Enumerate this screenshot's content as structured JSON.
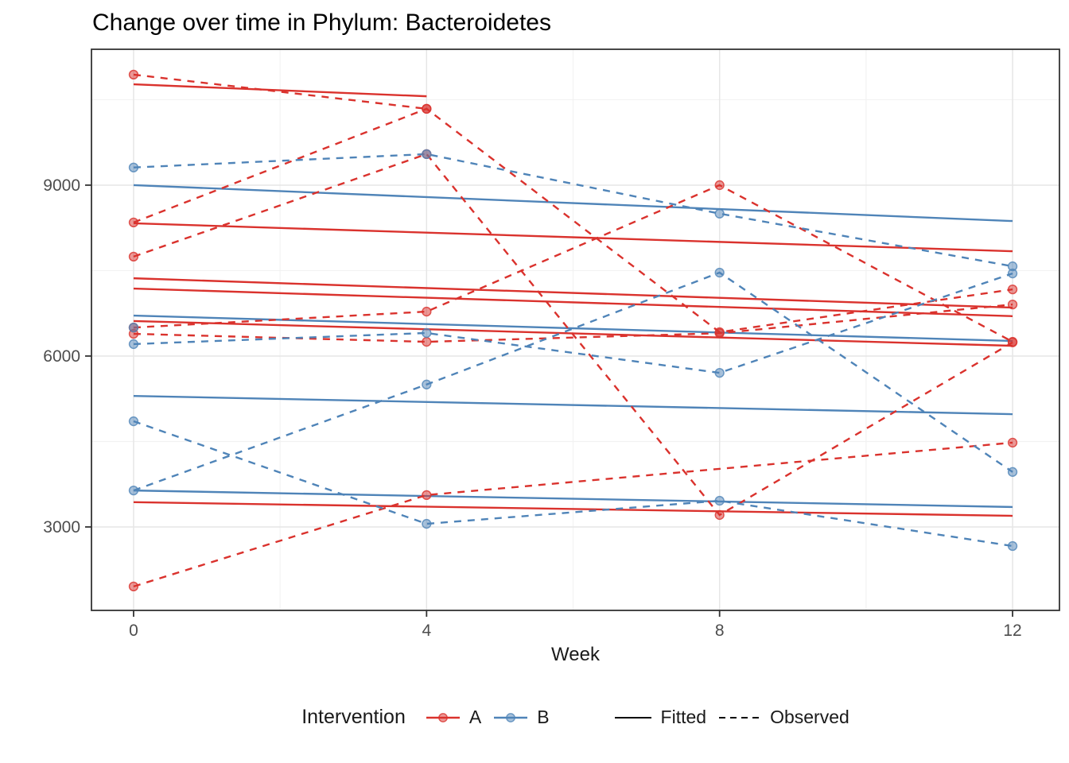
{
  "title": "Change over time in Phylum: Bacteroidetes",
  "colors": {
    "a": "#da322d",
    "b": "#4f84b8",
    "black": "#000000",
    "grid_major": "#e6e6e6",
    "grid_minor": "#f2f2f2",
    "panel_border": "#333333",
    "tick_label": "#4d4d4d"
  },
  "axes": {
    "x": {
      "label": "Week",
      "ticks": [
        0,
        4,
        8,
        12
      ],
      "minor_ticks": [
        2,
        6,
        10
      ],
      "range": [
        -0.575,
        12.64
      ]
    },
    "y": {
      "label": "",
      "ticks": [
        3000,
        6000,
        9000
      ],
      "minor_ticks": [
        4500,
        7500,
        10500
      ],
      "range": [
        1535,
        11385
      ]
    }
  },
  "legend": {
    "title": "Intervention",
    "color_entries": [
      {
        "label": "A",
        "color_key": "a"
      },
      {
        "label": "B",
        "color_key": "b"
      }
    ],
    "linetype_entries": [
      {
        "label": "Fitted",
        "linetype": "solid"
      },
      {
        "label": "Observed",
        "linetype": "dashed"
      }
    ]
  },
  "chart_data": {
    "type": "line",
    "title": "Change over time in Phylum: Bacteroidetes",
    "xlabel": "Week",
    "ylabel": "",
    "xlim": [
      -0.575,
      12.64
    ],
    "ylim": [
      1535,
      11385
    ],
    "grid": true,
    "legend_position": "bottom",
    "series": [
      {
        "name": "A-subject1-fitted",
        "intervention": "A",
        "linetype": "fitted",
        "x": [
          0,
          4
        ],
        "y": [
          10770,
          10560
        ]
      },
      {
        "name": "A-subject2-fitted",
        "intervention": "A",
        "linetype": "fitted",
        "x": [
          0,
          12
        ],
        "y": [
          8330,
          7840
        ]
      },
      {
        "name": "A-subject3-fitted",
        "intervention": "A",
        "linetype": "fitted",
        "x": [
          0,
          12
        ],
        "y": [
          7185,
          6700
        ]
      },
      {
        "name": "A-subject4-fitted",
        "intervention": "A",
        "linetype": "fitted",
        "x": [
          0,
          12
        ],
        "y": [
          7365,
          6850
        ]
      },
      {
        "name": "A-subject5-fitted",
        "intervention": "A",
        "linetype": "fitted",
        "x": [
          0,
          12
        ],
        "y": [
          6615,
          6180
        ]
      },
      {
        "name": "A-subject6-fitted",
        "intervention": "A",
        "linetype": "fitted",
        "x": [
          0,
          12
        ],
        "y": [
          3435,
          3195
        ]
      },
      {
        "name": "B-subject1-fitted",
        "intervention": "B",
        "linetype": "fitted",
        "x": [
          0,
          12
        ],
        "y": [
          9000,
          8370
        ]
      },
      {
        "name": "B-subject3-fitted",
        "intervention": "B",
        "linetype": "fitted",
        "x": [
          0,
          12
        ],
        "y": [
          6710,
          6265
        ]
      },
      {
        "name": "B-subject4-fitted",
        "intervention": "B",
        "linetype": "fitted",
        "x": [
          0,
          12
        ],
        "y": [
          5300,
          4980
        ]
      },
      {
        "name": "B-subject5-fitted",
        "intervention": "B",
        "linetype": "fitted",
        "x": [
          0,
          12
        ],
        "y": [
          3640,
          3350
        ]
      },
      {
        "name": "A-subject1-observed",
        "intervention": "A",
        "linetype": "observed",
        "x": [
          0,
          4
        ],
        "y": [
          10940,
          10340
        ]
      },
      {
        "name": "A-subject2-observed",
        "intervention": "A",
        "linetype": "observed",
        "x": [
          0,
          4,
          8,
          12
        ],
        "y": [
          8345,
          10340,
          6420,
          7170
        ]
      },
      {
        "name": "A-subject3-observed",
        "intervention": "A",
        "linetype": "observed",
        "x": [
          0,
          4,
          8,
          12
        ],
        "y": [
          7745,
          9545,
          3210,
          6240
        ]
      },
      {
        "name": "A-subject4-observed",
        "intervention": "A",
        "linetype": "observed",
        "x": [
          0,
          4,
          8,
          12
        ],
        "y": [
          6500,
          6780,
          9000,
          6250
        ]
      },
      {
        "name": "A-subject5-observed",
        "intervention": "A",
        "linetype": "observed",
        "x": [
          0,
          4,
          8,
          12
        ],
        "y": [
          6390,
          6250,
          6400,
          6905
        ]
      },
      {
        "name": "A-subject6-observed",
        "intervention": "A",
        "linetype": "observed",
        "x": [
          0,
          4,
          12
        ],
        "y": [
          1955,
          3560,
          4480
        ]
      },
      {
        "name": "B-subject1-observed",
        "intervention": "B",
        "linetype": "observed",
        "x": [
          0,
          4,
          8,
          12
        ],
        "y": [
          9310,
          9545,
          8500,
          7575
        ]
      },
      {
        "name": "B-subject2-observed",
        "intervention": "B",
        "linetype": "observed",
        "x": [
          0
        ],
        "y": [
          6500
        ]
      },
      {
        "name": "B-subject3-observed",
        "intervention": "B",
        "linetype": "observed",
        "x": [
          0,
          4,
          8,
          12
        ],
        "y": [
          6210,
          6405,
          5705,
          7450
        ]
      },
      {
        "name": "B-subject4-observed",
        "intervention": "B",
        "linetype": "observed",
        "x": [
          0,
          4,
          8,
          12
        ],
        "y": [
          4855,
          3055,
          3460,
          2665
        ]
      },
      {
        "name": "B-subject5-observed",
        "intervention": "B",
        "linetype": "observed",
        "x": [
          0,
          4,
          8,
          12
        ],
        "y": [
          3640,
          5500,
          7465,
          3965
        ]
      }
    ]
  }
}
